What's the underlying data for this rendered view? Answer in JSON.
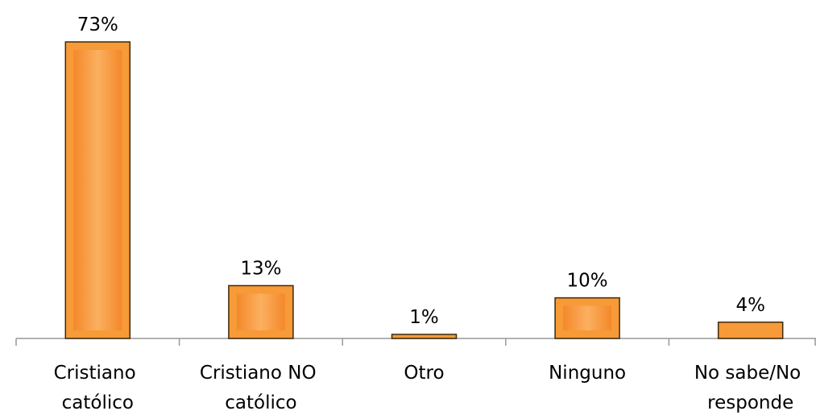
{
  "chart_data": {
    "type": "bar",
    "categories": [
      "Cristiano católico",
      "Cristiano NO católico",
      "Otro",
      "Ninguno",
      "No sabe/No responde"
    ],
    "values": [
      73,
      13,
      1,
      10,
      4
    ],
    "value_labels": [
      "73%",
      "13%",
      "1%",
      "10%",
      "4%"
    ],
    "color": "#f79a38"
  }
}
